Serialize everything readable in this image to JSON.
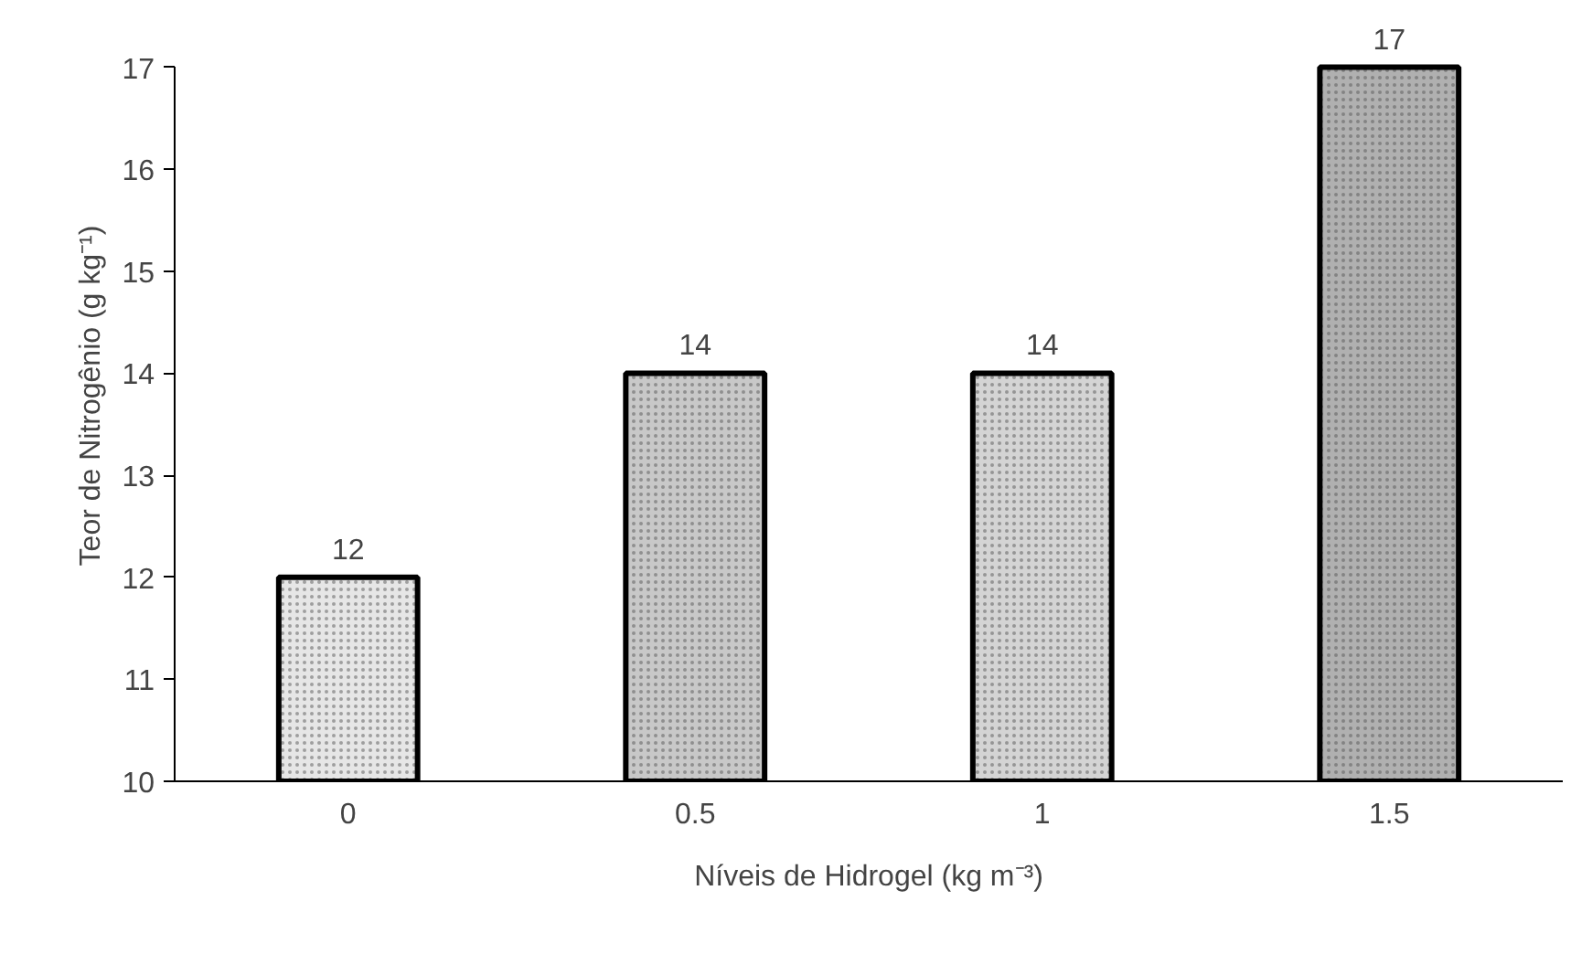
{
  "chart_data": {
    "type": "bar",
    "xlabel": "Níveis de Hidrogel (kg m⁻³)",
    "ylabel": "Teor de Nitrogênio (g kg⁻¹)",
    "categories": [
      "0",
      "0.5",
      "1",
      "1.5"
    ],
    "values": [
      12,
      14,
      14,
      17
    ],
    "colors": [
      "#e6e6e6",
      "#c8c8c8",
      "#d4d4d4",
      "#b0b0b0"
    ],
    "ylim": [
      10,
      17
    ],
    "yticks": [
      10,
      11,
      12,
      13,
      14,
      15,
      16,
      17
    ],
    "grid": false,
    "data_labels": true
  }
}
